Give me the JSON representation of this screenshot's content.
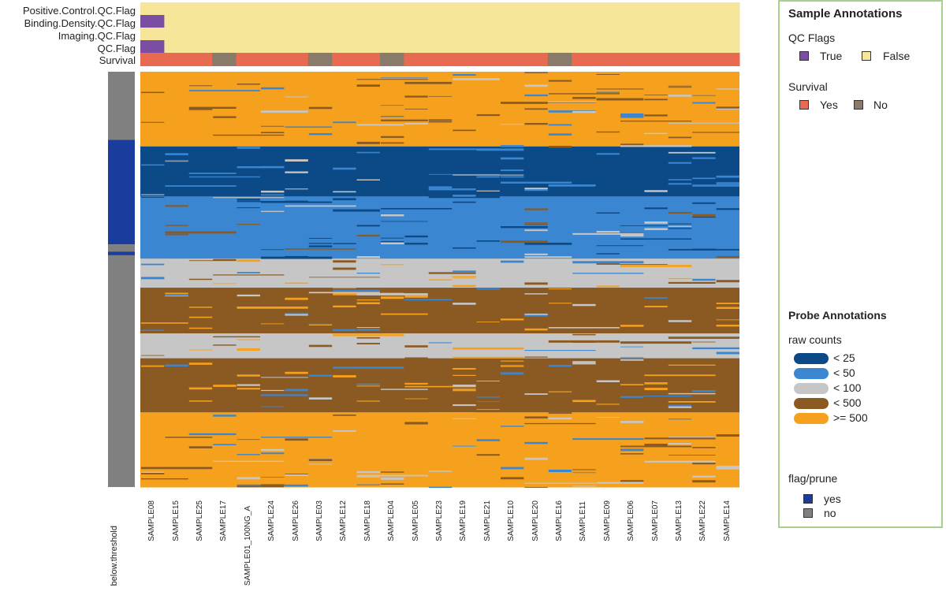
{
  "chart_data": {
    "type": "heatmap",
    "title": "",
    "samples": [
      "SAMPLE08",
      "SAMPLE15",
      "SAMPLE25",
      "SAMPLE17",
      "SAMPLE01_100NG_A",
      "SAMPLE24",
      "SAMPLE26",
      "SAMPLE03",
      "SAMPLE12",
      "SAMPLE18",
      "SAMPLE04",
      "SAMPLE05",
      "SAMPLE23",
      "SAMPLE19",
      "SAMPLE21",
      "SAMPLE10",
      "SAMPLE20",
      "SAMPLE16",
      "SAMPLE11",
      "SAMPLE09",
      "SAMPLE06",
      "SAMPLE07",
      "SAMPLE13",
      "SAMPLE22",
      "SAMPLE14"
    ],
    "sample_annotation_rows": [
      "Positive.Control.QC.Flag",
      "Binding.Density.QC.Flag",
      "Imaging.QC.Flag",
      "QC.Flag",
      "Survival"
    ],
    "sample_annotations": {
      "Positive.Control.QC.Flag": [
        false,
        false,
        false,
        false,
        false,
        false,
        false,
        false,
        false,
        false,
        false,
        false,
        false,
        false,
        false,
        false,
        false,
        false,
        false,
        false,
        false,
        false,
        false,
        false,
        false
      ],
      "Binding.Density.QC.Flag": [
        true,
        false,
        false,
        false,
        false,
        false,
        false,
        false,
        false,
        false,
        false,
        false,
        false,
        false,
        false,
        false,
        false,
        false,
        false,
        false,
        false,
        false,
        false,
        false,
        false
      ],
      "Imaging.QC.Flag": [
        false,
        false,
        false,
        false,
        false,
        false,
        false,
        false,
        false,
        false,
        false,
        false,
        false,
        false,
        false,
        false,
        false,
        false,
        false,
        false,
        false,
        false,
        false,
        false,
        false
      ],
      "QC.Flag": [
        true,
        false,
        false,
        false,
        false,
        false,
        false,
        false,
        false,
        false,
        false,
        false,
        false,
        false,
        false,
        false,
        false,
        false,
        false,
        false,
        false,
        false,
        false,
        false,
        false
      ],
      "Survival": [
        "Yes",
        "Yes",
        "Yes",
        "No",
        "Yes",
        "Yes",
        "Yes",
        "No",
        "Yes",
        "Yes",
        "No",
        "Yes",
        "Yes",
        "Yes",
        "Yes",
        "Yes",
        "Yes",
        "No",
        "Yes",
        "Yes",
        "Yes",
        "Yes",
        "Yes",
        "Yes",
        "Yes"
      ]
    },
    "probe_annotation_label": "below.threshold",
    "probe_annotation_blocks": [
      {
        "value": "no",
        "fraction": 0.164
      },
      {
        "value": "yes",
        "fraction": 0.252
      },
      {
        "value": "no",
        "fraction": 0.017
      },
      {
        "value": "yes",
        "fraction": 0.009
      },
      {
        "value": "no",
        "fraction": 0.558
      }
    ],
    "value_bands": [
      {
        "category": ">= 500",
        "fraction": 0.18
      },
      {
        "category": "< 25",
        "fraction": 0.12
      },
      {
        "category": "< 50",
        "fraction": 0.15
      },
      {
        "category": "< 100",
        "fraction": 0.07
      },
      {
        "category": "< 500",
        "fraction": 0.11
      },
      {
        "category": "< 100",
        "fraction": 0.06
      },
      {
        "category": "< 500",
        "fraction": 0.13
      },
      {
        "category": ">= 500",
        "fraction": 0.18
      }
    ],
    "colors": {
      "lt25": "#0b4a87",
      "lt50": "#3b86d0",
      "lt100": "#c6c6c6",
      "lt500": "#8b5a23",
      "ge500": "#f5a11e",
      "qc_true": "#7b4ea3",
      "qc_false": "#f5e69a",
      "surv_yes": "#e86a50",
      "surv_no": "#8a7a6a",
      "flag_yes": "#1a3c9c",
      "flag_no": "#808080"
    }
  },
  "legend": {
    "sample_title": "Sample Annotations",
    "qc_subtitle": "QC Flags",
    "qc_true_label": "True",
    "qc_false_label": "False",
    "survival_subtitle": "Survival",
    "survival_yes_label": "Yes",
    "survival_no_label": "No",
    "probe_title": "Probe Annotations",
    "raw_subtitle": "raw counts",
    "raw_labels": [
      "< 25",
      "< 50",
      "< 100",
      "< 500",
      ">= 500"
    ],
    "flag_subtitle": "flag/prune",
    "flag_yes_label": "yes",
    "flag_no_label": "no"
  }
}
